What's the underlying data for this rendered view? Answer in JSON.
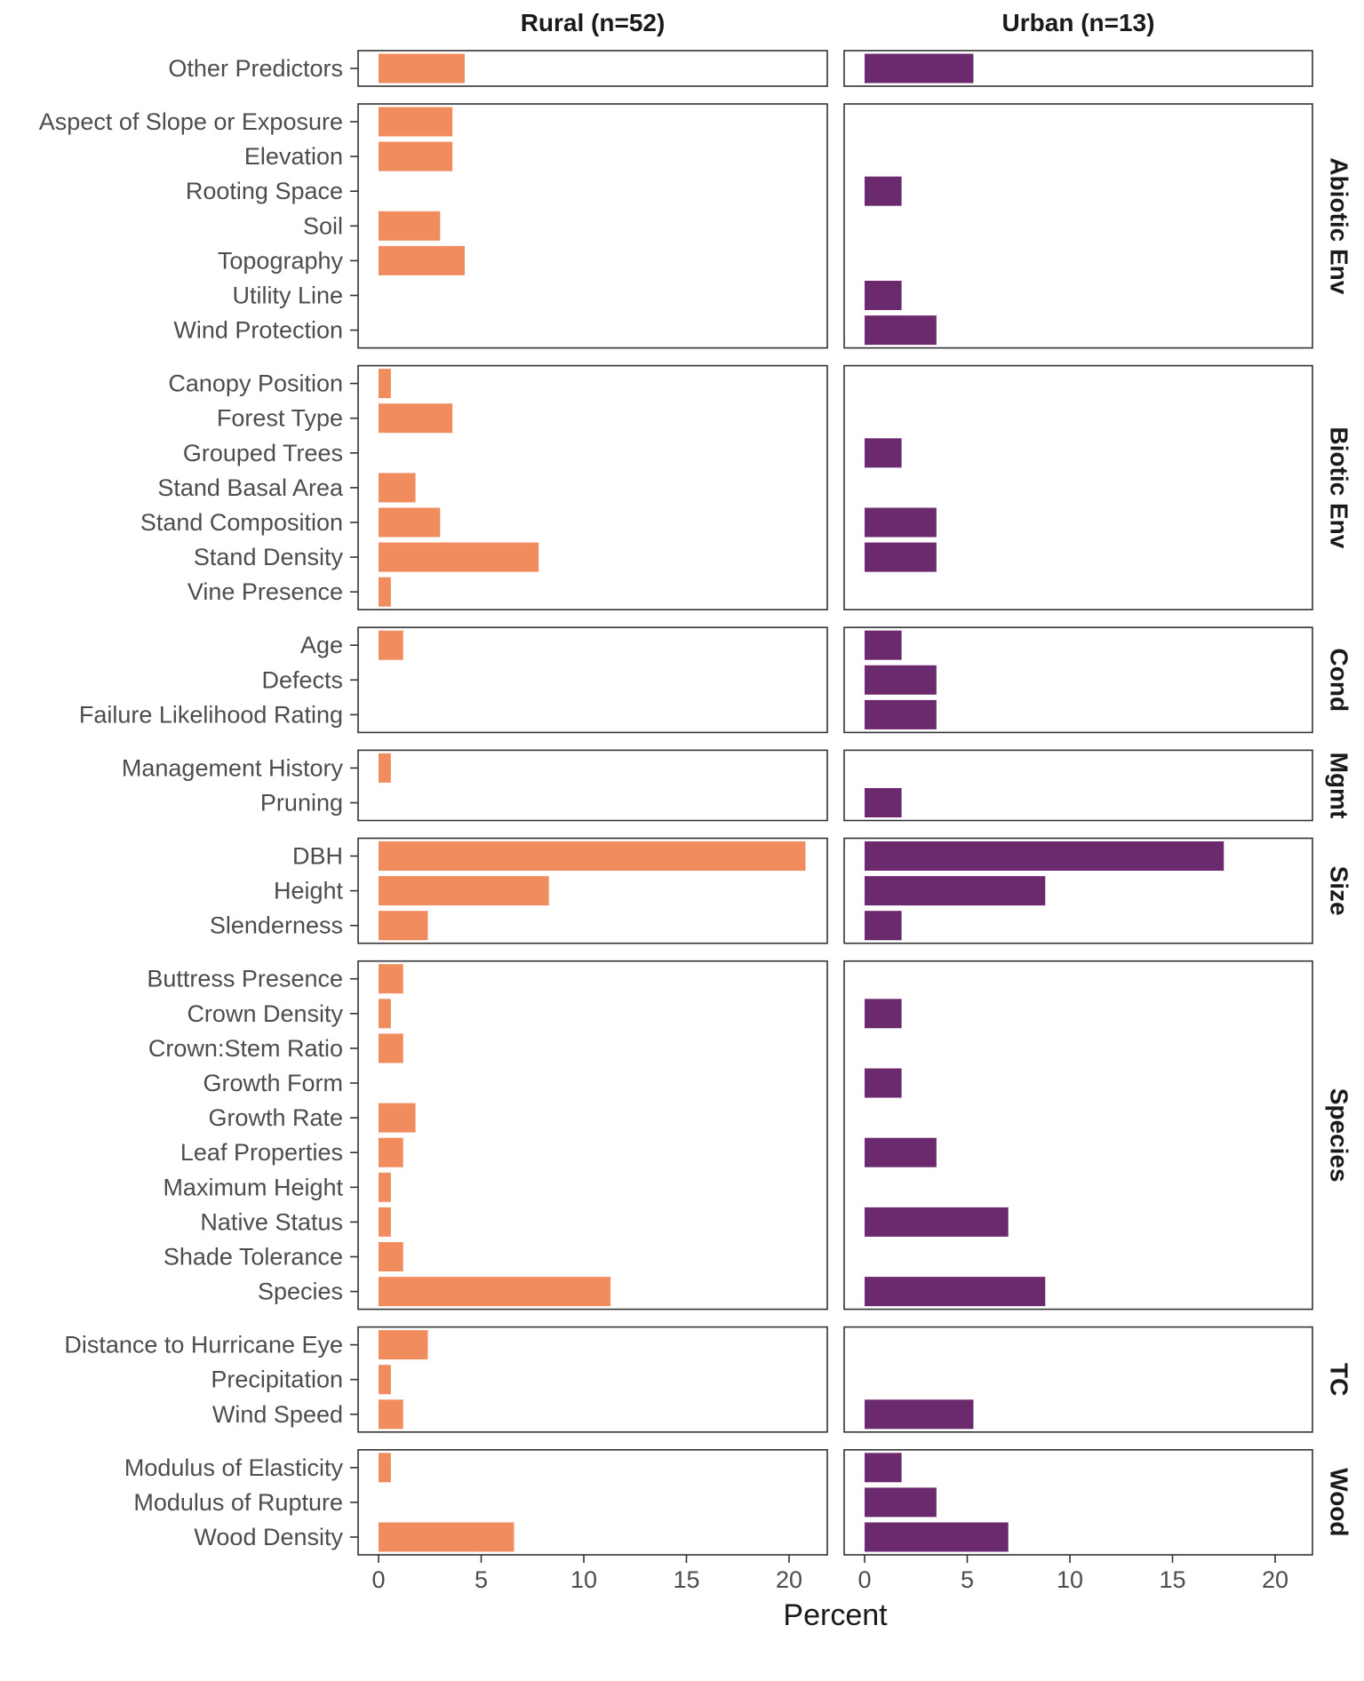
{
  "chart_data": {
    "type": "bar",
    "orientation": "horizontal",
    "xlabel": "Percent",
    "xlim": [
      0,
      22
    ],
    "xticks": [
      0,
      5,
      10,
      15,
      20
    ],
    "grid": false,
    "colors": {
      "Rural (n=52)": "#f08c5e",
      "Urban (n=13)": "#6b2a6e"
    },
    "columns": [
      "Rural (n=52)",
      "Urban (n=13)"
    ],
    "groups": [
      {
        "name": "",
        "items": [
          {
            "label": "Other Predictors",
            "rural": 4.2,
            "urban": 5.3
          }
        ]
      },
      {
        "name": "Abiotic Env",
        "items": [
          {
            "label": "Aspect of Slope or Exposure",
            "rural": 3.6,
            "urban": 0
          },
          {
            "label": "Elevation",
            "rural": 3.6,
            "urban": 0
          },
          {
            "label": "Rooting Space",
            "rural": 0,
            "urban": 1.8
          },
          {
            "label": "Soil",
            "rural": 3.0,
            "urban": 0
          },
          {
            "label": "Topography",
            "rural": 4.2,
            "urban": 0
          },
          {
            "label": "Utility Line",
            "rural": 0,
            "urban": 1.8
          },
          {
            "label": "Wind Protection",
            "rural": 0,
            "urban": 3.5
          }
        ]
      },
      {
        "name": "Biotic Env",
        "items": [
          {
            "label": "Canopy Position",
            "rural": 0.6,
            "urban": 0
          },
          {
            "label": "Forest Type",
            "rural": 3.6,
            "urban": 0
          },
          {
            "label": "Grouped Trees",
            "rural": 0,
            "urban": 1.8
          },
          {
            "label": "Stand Basal Area",
            "rural": 1.8,
            "urban": 0
          },
          {
            "label": "Stand Composition",
            "rural": 3.0,
            "urban": 3.5
          },
          {
            "label": "Stand Density",
            "rural": 7.8,
            "urban": 3.5
          },
          {
            "label": "Vine Presence",
            "rural": 0.6,
            "urban": 0
          }
        ]
      },
      {
        "name": "Cond",
        "items": [
          {
            "label": "Age",
            "rural": 1.2,
            "urban": 1.8
          },
          {
            "label": "Defects",
            "rural": 0,
            "urban": 3.5
          },
          {
            "label": "Failure Likelihood Rating",
            "rural": 0,
            "urban": 3.5
          }
        ]
      },
      {
        "name": "Mgmt",
        "items": [
          {
            "label": "Management History",
            "rural": 0.6,
            "urban": 0
          },
          {
            "label": "Pruning",
            "rural": 0,
            "urban": 1.8
          }
        ]
      },
      {
        "name": "Size",
        "items": [
          {
            "label": "DBH",
            "rural": 20.8,
            "urban": 17.5
          },
          {
            "label": "Height",
            "rural": 8.3,
            "urban": 8.8
          },
          {
            "label": "Slenderness",
            "rural": 2.4,
            "urban": 1.8
          }
        ]
      },
      {
        "name": "Species",
        "items": [
          {
            "label": "Buttress Presence",
            "rural": 1.2,
            "urban": 0
          },
          {
            "label": "Crown Density",
            "rural": 0.6,
            "urban": 1.8
          },
          {
            "label": "Crown:Stem Ratio",
            "rural": 1.2,
            "urban": 0
          },
          {
            "label": "Growth Form",
            "rural": 0,
            "urban": 1.8
          },
          {
            "label": "Growth Rate",
            "rural": 1.8,
            "urban": 0
          },
          {
            "label": "Leaf Properties",
            "rural": 1.2,
            "urban": 3.5
          },
          {
            "label": "Maximum Height",
            "rural": 0.6,
            "urban": 0
          },
          {
            "label": "Native Status",
            "rural": 0.6,
            "urban": 7.0
          },
          {
            "label": "Shade Tolerance",
            "rural": 1.2,
            "urban": 0
          },
          {
            "label": "Species",
            "rural": 11.3,
            "urban": 8.8
          }
        ]
      },
      {
        "name": "TC",
        "items": [
          {
            "label": "Distance to Hurricane Eye",
            "rural": 2.4,
            "urban": 0
          },
          {
            "label": "Precipitation",
            "rural": 0.6,
            "urban": 0
          },
          {
            "label": "Wind Speed",
            "rural": 1.2,
            "urban": 5.3
          }
        ]
      },
      {
        "name": "Wood",
        "items": [
          {
            "label": "Modulus of Elasticity",
            "rural": 0.6,
            "urban": 1.8
          },
          {
            "label": "Modulus of Rupture",
            "rural": 0,
            "urban": 3.5
          },
          {
            "label": "Wood Density",
            "rural": 6.6,
            "urban": 7.0
          }
        ]
      }
    ]
  }
}
